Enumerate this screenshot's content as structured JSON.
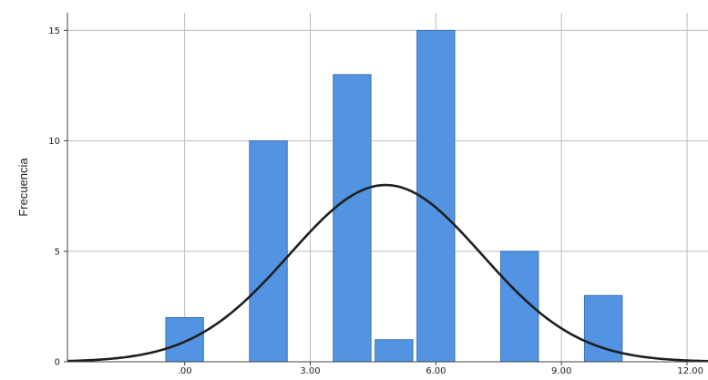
{
  "chart_data": {
    "type": "bar",
    "title": "",
    "xlabel": "",
    "ylabel": "Frecuencia",
    "xlim": [
      -2.8,
      12.5
    ],
    "ylim": [
      0,
      15.8
    ],
    "x_ticks": [
      ".00",
      "3.00",
      "6.00",
      "9.00",
      "12.00"
    ],
    "x_tick_values": [
      0,
      3,
      6,
      9,
      12
    ],
    "y_ticks": [
      "0",
      "5",
      "10",
      "15"
    ],
    "y_tick_values": [
      0,
      5,
      10,
      15
    ],
    "bar_width": 0.9,
    "bars": [
      {
        "x": 0.0,
        "value": 2
      },
      {
        "x": 2.0,
        "value": 10
      },
      {
        "x": 4.0,
        "value": 13
      },
      {
        "x": 5.0,
        "value": 1
      },
      {
        "x": 6.0,
        "value": 15
      },
      {
        "x": 8.0,
        "value": 5
      },
      {
        "x": 10.0,
        "value": 3
      }
    ],
    "normal_curve": {
      "mean": 4.8,
      "peak": 8.0,
      "sd": 2.3
    },
    "grid": true,
    "colors": {
      "bar": "#5294e2",
      "bar_edge": "#3a6fb4",
      "curve": "#1f1f1f",
      "grid": "#bdbdbd"
    }
  }
}
